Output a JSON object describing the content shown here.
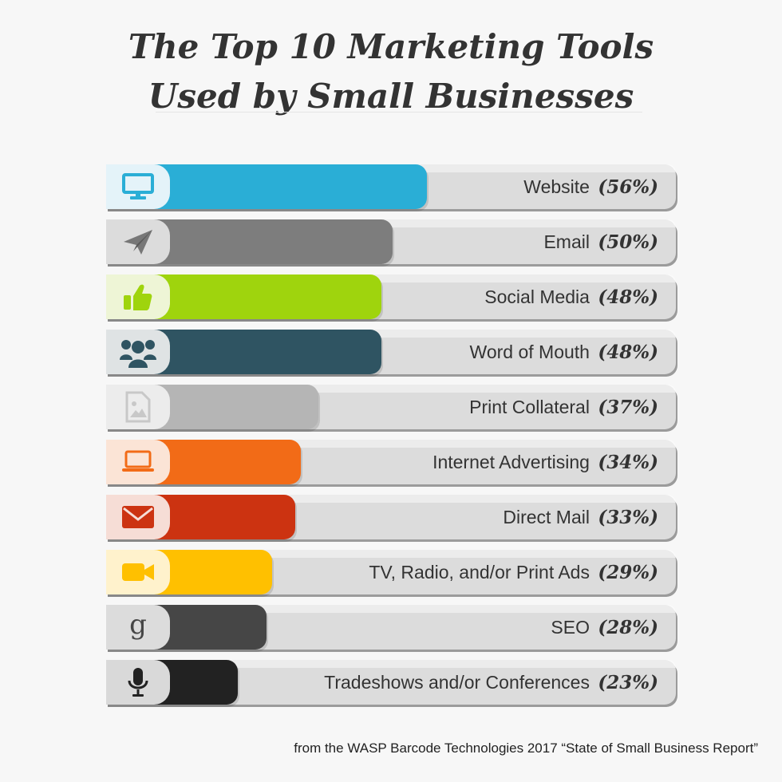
{
  "title_lines": [
    "The Top 10 Marketing Tools",
    "Used by Small Businesses"
  ],
  "footnote": "from the WASP Barcode Technologies 2017 “State of Small Business Report”",
  "chart_data": {
    "type": "bar",
    "orientation": "horizontal",
    "categories": [
      "Website",
      "Email",
      "Social Media",
      "Word of Mouth",
      "Print Collateral",
      "Internet Advertising",
      "Direct Mail",
      "TV, Radio, and/or Print Ads",
      "SEO",
      "Tradeshows and/or Conferences"
    ],
    "values": [
      56,
      50,
      48,
      48,
      37,
      34,
      33,
      29,
      28,
      23
    ],
    "value_labels": [
      "(56%)",
      "(50%)",
      "(48%)",
      "(48%)",
      "(37%)",
      "(34%)",
      "(33%)",
      "(29%)",
      "(28%)",
      "(23%)"
    ],
    "unit": "%",
    "xlim": [
      0,
      100
    ],
    "bar_colors": [
      "#2aaed6",
      "#7d7d7d",
      "#9fd40d",
      "#2f5462",
      "#b5b5b5",
      "#f26b17",
      "#cc3311",
      "#ffc000",
      "#464646",
      "#222222"
    ],
    "icon_bg_colors": [
      "#e4f3f9",
      "#dcdcdc",
      "#eef5d6",
      "#dfe3e4",
      "#ececec",
      "#fbe4d6",
      "#f6ddd6",
      "#fff2cc",
      "#dcdcdc",
      "#d9d9d9"
    ],
    "icons": [
      "monitor-icon",
      "paper-plane-icon",
      "thumbs-up-icon",
      "people-group-icon",
      "image-file-icon",
      "laptop-icon",
      "envelope-icon",
      "video-camera-icon",
      "google-g-icon",
      "microphone-icon"
    ],
    "legend": "none",
    "grid": false
  }
}
